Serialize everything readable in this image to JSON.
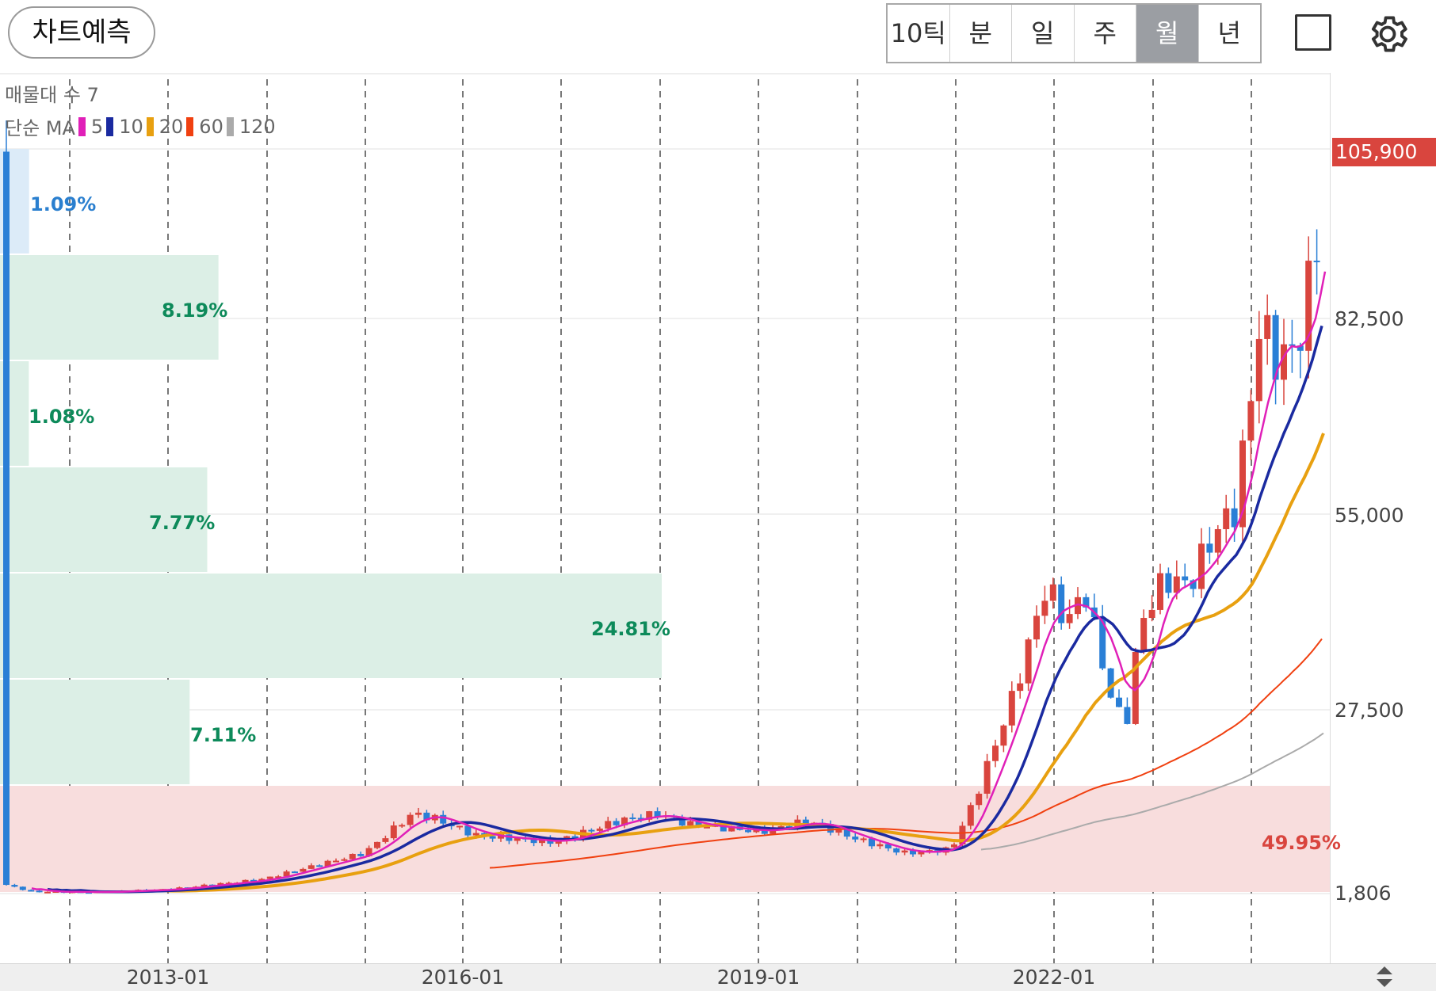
{
  "toolbar": {
    "predict_label": "차트예측",
    "periods": [
      "10틱",
      "분",
      "일",
      "주",
      "월",
      "년"
    ],
    "active_period": "월",
    "icons": [
      "square-icon",
      "gear-icon"
    ]
  },
  "legend": {
    "volume_profile": "매물대 수 7",
    "ma_title": "단순 MA",
    "ma": [
      {
        "label": "5",
        "color": "#e020b8"
      },
      {
        "label": "10",
        "color": "#1a2aa0"
      },
      {
        "label": "20",
        "color": "#e8a010"
      },
      {
        "label": "60",
        "color": "#f04010"
      },
      {
        "label": "120",
        "color": "#aaaaaa"
      }
    ]
  },
  "price_axis": {
    "labels": [
      "82,500",
      "55,000",
      "27,500",
      "1,806"
    ],
    "current_price": "105,900"
  },
  "time_axis": {
    "labels": [
      "2013-01",
      "2016-01",
      "2019-01",
      "2022-01"
    ]
  },
  "volume_profile": [
    {
      "label": "1.09%",
      "value": 1.09,
      "color": "#2a7fcf"
    },
    {
      "label": "8.19%",
      "value": 8.19,
      "color": "#0d8a5a"
    },
    {
      "label": "1.08%",
      "value": 1.08,
      "color": "#0d8a5a"
    },
    {
      "label": "7.77%",
      "value": 7.77,
      "color": "#0d8a5a"
    },
    {
      "label": "24.81%",
      "value": 24.81,
      "color": "#0d8a5a"
    },
    {
      "label": "7.11%",
      "value": 7.11,
      "color": "#0d8a5a"
    },
    {
      "label": "49.95%",
      "value": 49.95,
      "color": "#d9453e"
    }
  ],
  "colors": {
    "up": "#d9453e",
    "down": "#2a7fd6"
  }
}
